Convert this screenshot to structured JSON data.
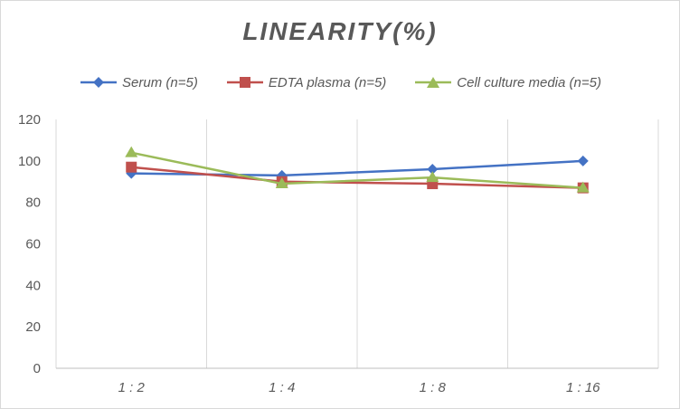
{
  "chart_data": {
    "type": "line",
    "title": "LINEARITY(%)",
    "categories": [
      "1:2",
      "1:4",
      "1:8",
      "1:16"
    ],
    "series": [
      {
        "name": "Serum (n=5)",
        "values": [
          94,
          93,
          96,
          100
        ],
        "color": "#4472c4",
        "marker": "diamond"
      },
      {
        "name": "EDTA plasma (n=5)",
        "values": [
          97,
          90,
          89,
          87
        ],
        "color": "#c0504d",
        "marker": "square"
      },
      {
        "name": "Cell culture media (n=5)",
        "values": [
          104,
          89,
          92,
          87
        ],
        "color": "#9bbb59",
        "marker": "triangle"
      }
    ],
    "ylim": [
      0,
      120
    ],
    "yticks": [
      0,
      20,
      40,
      60,
      80,
      100,
      120
    ],
    "grid": "vertical category separators",
    "legend_position": "top"
  }
}
